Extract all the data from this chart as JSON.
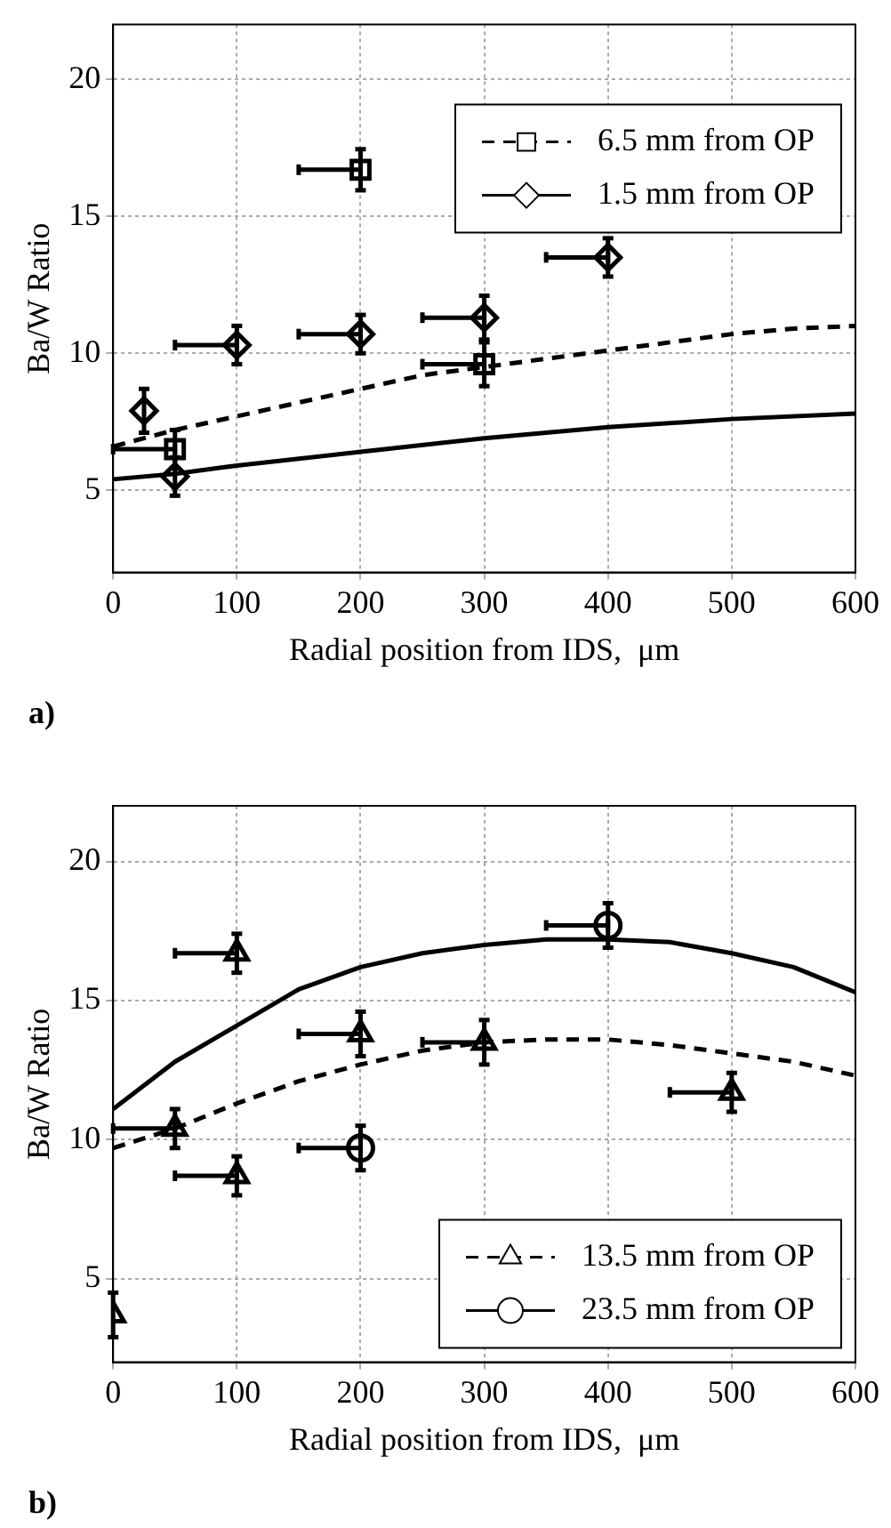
{
  "chart_data": [
    {
      "type": "scatter",
      "xlabel": "Radial position from IDS,  μm",
      "ylabel": "Ba/W Ratio",
      "xlim": [
        0,
        600
      ],
      "xticks": [
        0,
        100,
        200,
        300,
        400,
        500,
        600
      ],
      "ylim": [
        2,
        22
      ],
      "yticks": [
        5,
        10,
        15,
        20
      ],
      "grid": true,
      "legend": "top right",
      "annotations": [
        "a)"
      ],
      "series": [
        {
          "name": "6.5 mm from OP",
          "type": "scatter",
          "marker": "square",
          "line_style": "dashed",
          "color": "#000000",
          "x": [
            50,
            200,
            300
          ],
          "values": [
            6.5,
            16.7,
            9.6
          ],
          "errors": [
            0.7,
            0.75,
            0.8
          ],
          "xerrors": [
            [
              0,
              50
            ],
            [
              150,
              200
            ],
            [
              250,
              300
            ]
          ]
        },
        {
          "name": "1.5 mm from OP",
          "type": "scatter",
          "marker": "diamond",
          "line_style": "solid",
          "color": "#000000",
          "x": [
            25,
            50,
            100,
            200,
            300,
            400
          ],
          "values": [
            7.9,
            5.5,
            10.3,
            10.7,
            11.3,
            13.5
          ],
          "errors": [
            0.8,
            0.7,
            0.7,
            0.7,
            0.8,
            0.7
          ],
          "xerrors": [
            null,
            null,
            [
              50,
              100
            ],
            [
              150,
              200
            ],
            [
              250,
              300
            ],
            [
              350,
              400
            ]
          ]
        },
        {
          "type": "line",
          "line_style": "dashed",
          "marker": "none",
          "color": "#000000",
          "x": [
            0,
            50,
            100,
            150,
            200,
            250,
            300,
            350,
            400,
            450,
            500,
            550,
            600
          ],
          "values": [
            6.6,
            7.2,
            7.7,
            8.2,
            8.7,
            9.2,
            9.5,
            9.8,
            10.1,
            10.4,
            10.7,
            10.9,
            11.0
          ]
        },
        {
          "type": "line",
          "line_style": "solid",
          "marker": "none",
          "color": "#000000",
          "x": [
            0,
            50,
            100,
            200,
            300,
            400,
            500,
            600
          ],
          "values": [
            5.4,
            5.6,
            5.9,
            6.4,
            6.9,
            7.3,
            7.6,
            7.8
          ]
        }
      ]
    },
    {
      "type": "scatter",
      "xlabel": "Radial position from IDS,  μm",
      "ylabel": "Ba/W Ratio",
      "xlim": [
        0,
        600
      ],
      "xticks": [
        0,
        100,
        200,
        300,
        400,
        500,
        600
      ],
      "ylim": [
        2,
        22
      ],
      "yticks": [
        5,
        10,
        15,
        20
      ],
      "grid": true,
      "legend": "bottom right",
      "annotations": [
        "b)"
      ],
      "series": [
        {
          "name": "13.5 mm from OP",
          "type": "scatter",
          "marker": "triangle",
          "line_style": "dashed",
          "color": "#000000",
          "x": [
            0,
            50,
            100,
            100,
            200,
            300,
            500
          ],
          "values": [
            3.7,
            10.4,
            16.7,
            8.7,
            13.8,
            13.5,
            11.7
          ],
          "errors": [
            0.8,
            0.7,
            0.7,
            0.7,
            0.8,
            0.8,
            0.7
          ],
          "xerrors": [
            null,
            [
              0,
              50
            ],
            [
              50,
              100
            ],
            [
              50,
              100
            ],
            [
              150,
              200
            ],
            [
              250,
              300
            ],
            [
              450,
              500
            ]
          ]
        },
        {
          "name": "23.5 mm from OP",
          "type": "scatter",
          "marker": "circle",
          "line_style": "solid",
          "color": "#000000",
          "x": [
            200,
            400
          ],
          "values": [
            9.7,
            17.7
          ],
          "errors": [
            0.8,
            0.8
          ],
          "xerrors": [
            [
              150,
              200
            ],
            [
              350,
              400
            ]
          ]
        },
        {
          "type": "line",
          "line_style": "dashed",
          "marker": "none",
          "color": "#000000",
          "x": [
            0,
            50,
            100,
            150,
            200,
            250,
            300,
            350,
            400,
            450,
            500,
            550,
            600
          ],
          "values": [
            9.7,
            10.4,
            11.3,
            12.1,
            12.7,
            13.2,
            13.5,
            13.6,
            13.6,
            13.4,
            13.1,
            12.8,
            12.3
          ]
        },
        {
          "type": "line",
          "line_style": "solid",
          "marker": "none",
          "color": "#000000",
          "x": [
            0,
            50,
            100,
            150,
            200,
            250,
            300,
            350,
            400,
            450,
            500,
            550,
            600
          ],
          "values": [
            11.1,
            12.8,
            14.1,
            15.4,
            16.2,
            16.7,
            17.0,
            17.2,
            17.2,
            17.1,
            16.7,
            16.2,
            15.3
          ]
        }
      ]
    }
  ]
}
